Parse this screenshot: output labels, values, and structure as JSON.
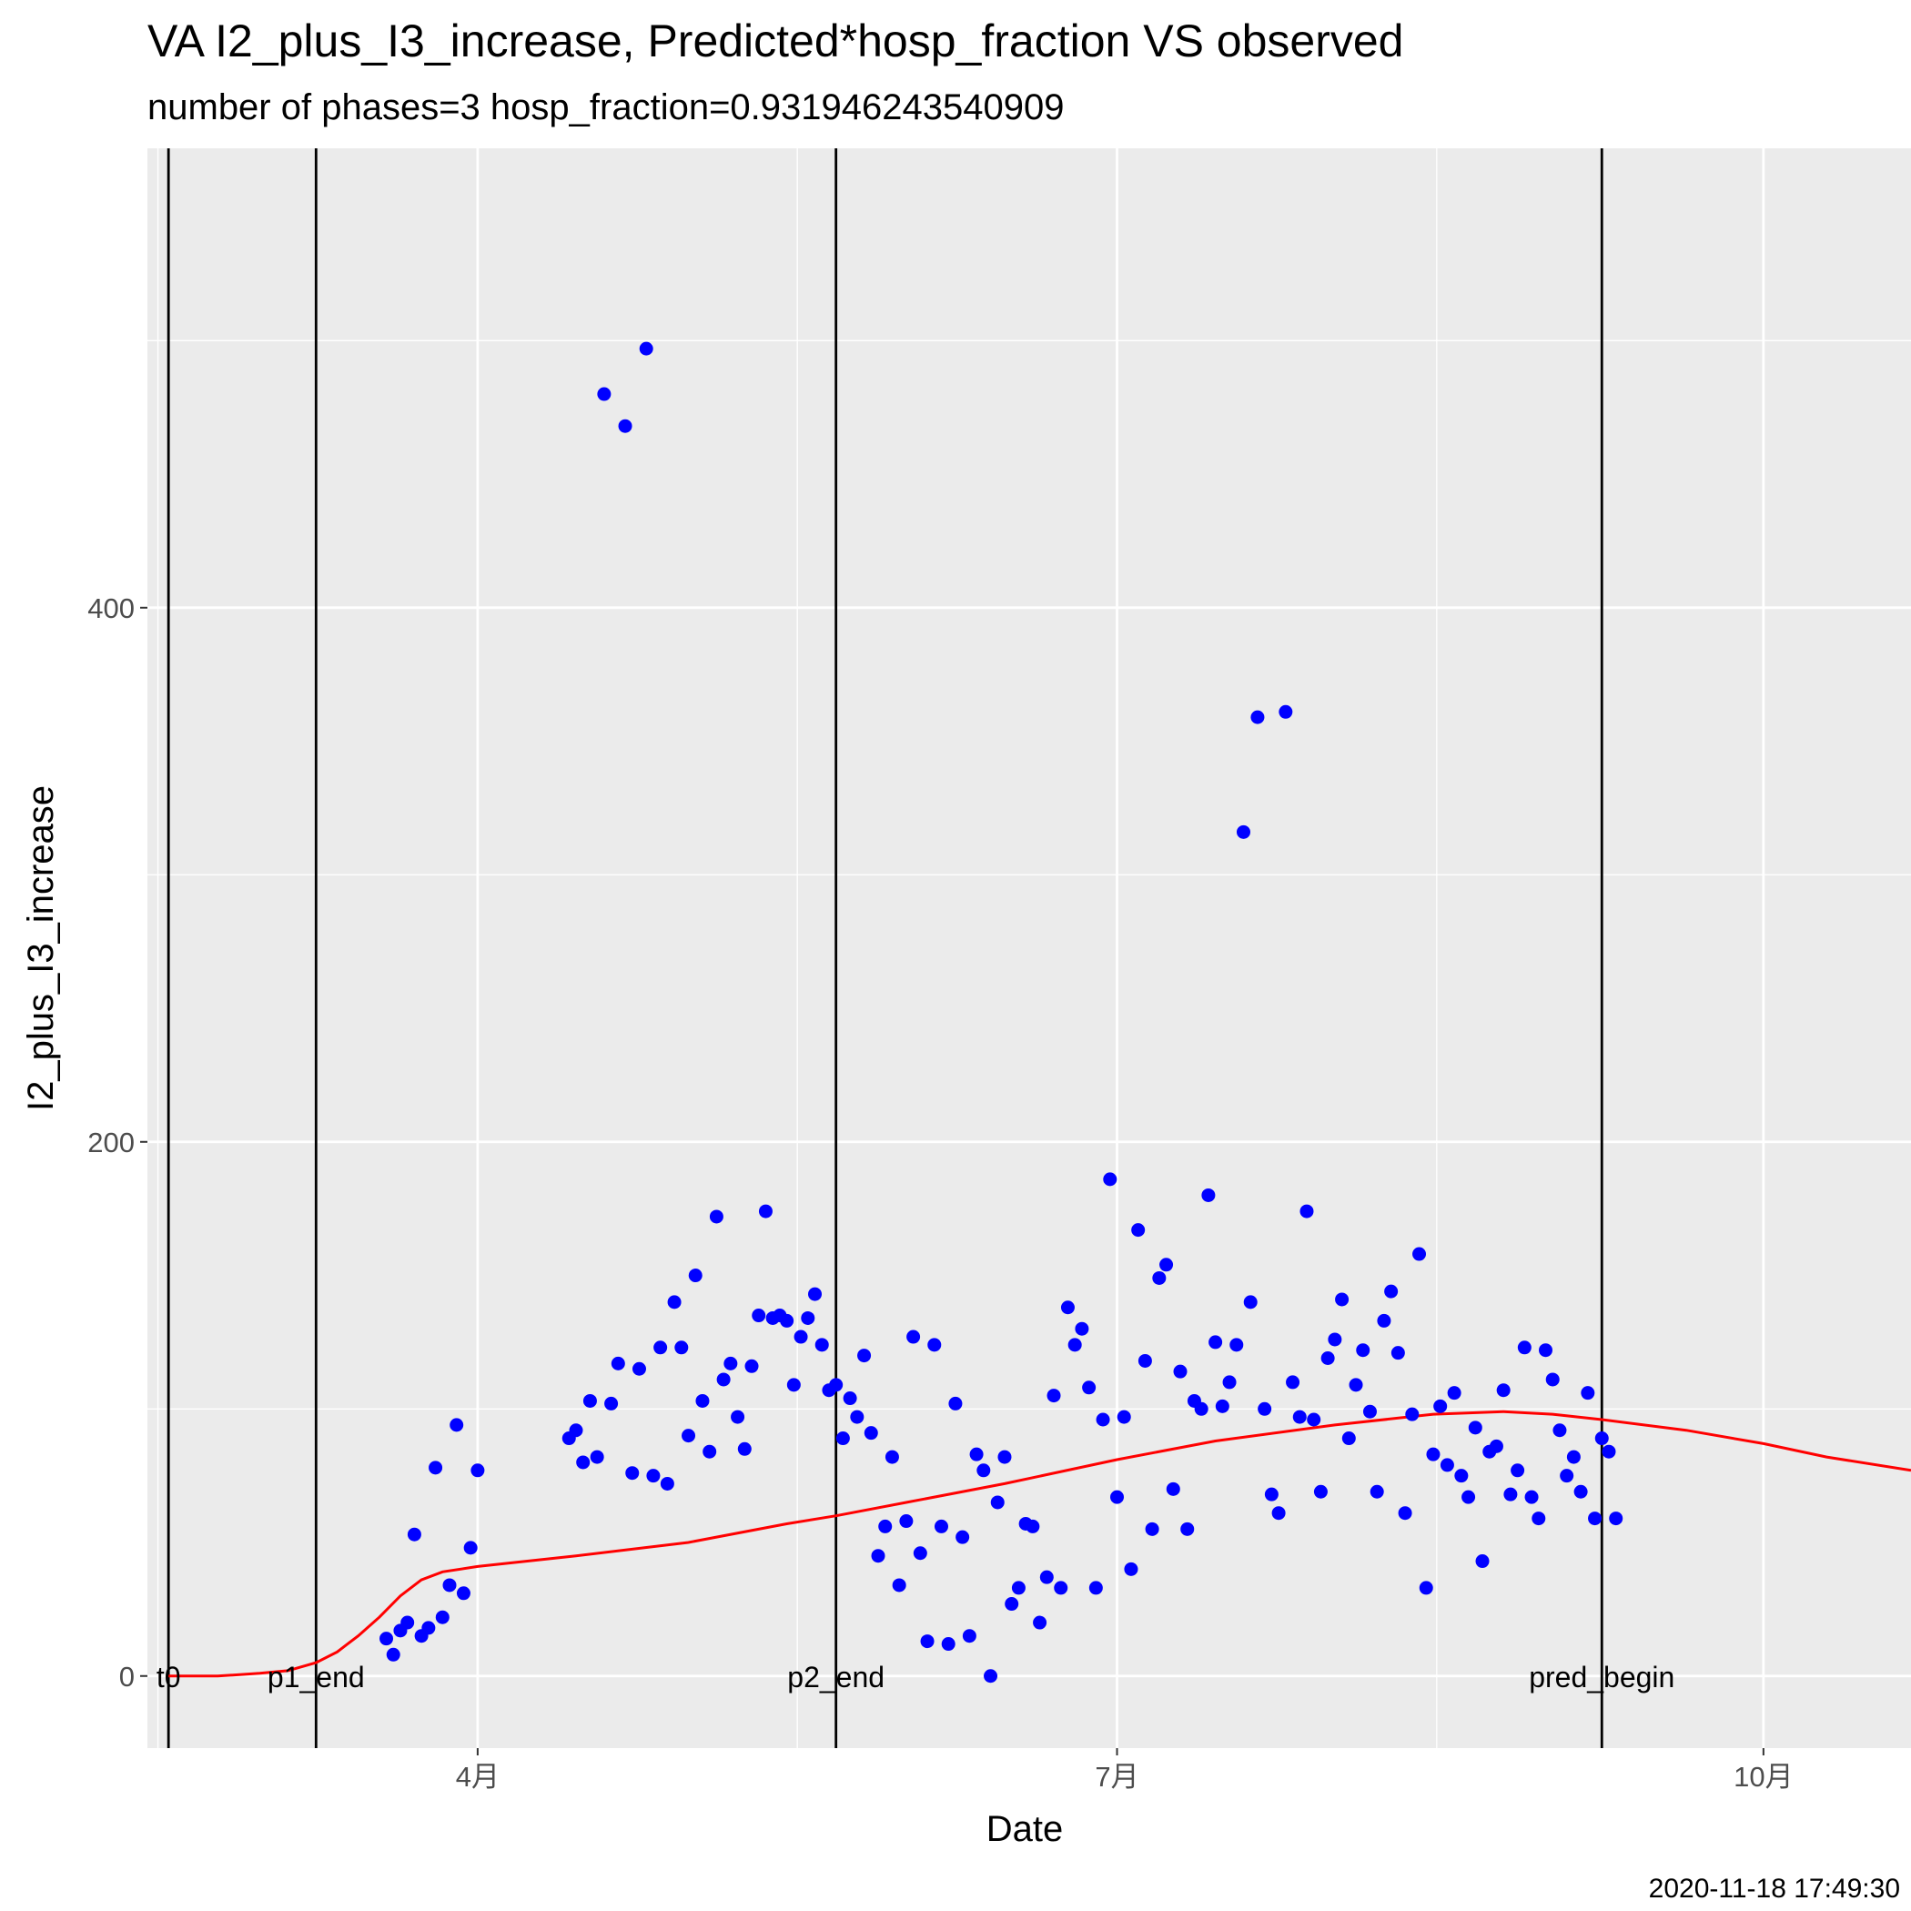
{
  "chart_data": {
    "type": "scatter",
    "title": "VA I2_plus_I3_increase, Predicted*hosp_fraction VS observed",
    "subtitle": "number of phases=3   hosp_fraction=0.931946243540909",
    "xlabel": "Date",
    "ylabel": "I2_plus_I3_increase",
    "caption": "2020-11-18 17:49:30",
    "xlim": [
      "2020-02-14",
      "2020-10-22"
    ],
    "ylim": [
      -27,
      572
    ],
    "x_ticks": [
      {
        "date": "2020-04-01",
        "label": "4月"
      },
      {
        "date": "2020-07-01",
        "label": "7月"
      },
      {
        "date": "2020-10-01",
        "label": "10月"
      }
    ],
    "y_ticks": [
      0,
      200,
      400
    ],
    "grid": true,
    "legend": "none",
    "colors": {
      "panel": "#ebebeb",
      "grid": "#ffffff",
      "observed": "#0000ff",
      "predicted": "#ff0000",
      "vline": "#000000"
    },
    "vlines": [
      {
        "date": "2020-02-17",
        "label": "t0"
      },
      {
        "date": "2020-03-09",
        "label": "p1_end"
      },
      {
        "date": "2020-05-22",
        "label": "p2_end"
      },
      {
        "date": "2020-09-08",
        "label": "pred_begin"
      }
    ],
    "observed": {
      "start_date": "2020-03-19",
      "values": [
        14,
        8,
        17,
        20,
        53,
        15,
        18,
        78,
        22,
        34,
        94,
        31,
        48,
        77,
        null,
        null,
        null,
        null,
        null,
        null,
        null,
        null,
        null,
        null,
        null,
        null,
        89,
        92,
        80,
        103,
        82,
        480,
        102,
        117,
        468,
        76,
        115,
        497,
        75,
        123,
        72,
        140,
        123,
        90,
        150,
        103,
        84,
        172,
        111,
        117,
        97,
        85,
        116,
        135,
        174,
        134,
        135,
        133,
        109,
        127,
        134,
        143,
        124,
        107,
        109,
        89,
        104,
        97,
        120,
        91,
        45,
        56,
        82,
        34,
        58,
        127,
        46,
        13,
        124,
        56,
        12,
        102,
        52,
        15,
        83,
        77,
        0,
        65,
        82,
        27,
        33,
        57,
        56,
        20,
        37,
        105,
        33,
        138,
        124,
        130,
        108,
        33,
        96,
        186,
        67,
        97,
        40,
        167,
        118,
        55,
        149,
        154,
        70,
        114,
        55,
        103,
        100,
        180,
        125,
        101,
        110,
        124,
        316,
        140,
        359,
        100,
        68,
        61,
        361,
        110,
        97,
        174,
        96,
        69,
        119,
        126,
        141,
        89,
        109,
        122,
        99,
        69,
        133,
        144,
        121,
        61,
        98,
        158,
        33,
        83,
        101,
        79,
        106,
        75,
        67,
        93,
        43,
        84,
        86,
        107,
        68,
        77,
        123,
        67,
        59,
        122,
        111,
        92,
        75,
        82,
        69,
        106,
        59,
        89,
        84,
        59
      ]
    },
    "predicted": {
      "points": [
        {
          "date": "2020-02-17",
          "value": 0
        },
        {
          "date": "2020-02-24",
          "value": 0
        },
        {
          "date": "2020-03-01",
          "value": 1
        },
        {
          "date": "2020-03-05",
          "value": 2
        },
        {
          "date": "2020-03-09",
          "value": 5
        },
        {
          "date": "2020-03-12",
          "value": 9
        },
        {
          "date": "2020-03-15",
          "value": 15
        },
        {
          "date": "2020-03-18",
          "value": 22
        },
        {
          "date": "2020-03-21",
          "value": 30
        },
        {
          "date": "2020-03-24",
          "value": 36
        },
        {
          "date": "2020-03-27",
          "value": 39
        },
        {
          "date": "2020-04-01",
          "value": 41
        },
        {
          "date": "2020-04-15",
          "value": 45
        },
        {
          "date": "2020-05-01",
          "value": 50
        },
        {
          "date": "2020-05-15",
          "value": 57
        },
        {
          "date": "2020-05-22",
          "value": 60
        },
        {
          "date": "2020-06-01",
          "value": 65
        },
        {
          "date": "2020-06-15",
          "value": 72
        },
        {
          "date": "2020-07-01",
          "value": 81
        },
        {
          "date": "2020-07-15",
          "value": 88
        },
        {
          "date": "2020-08-01",
          "value": 94
        },
        {
          "date": "2020-08-15",
          "value": 98
        },
        {
          "date": "2020-08-25",
          "value": 99
        },
        {
          "date": "2020-09-01",
          "value": 98
        },
        {
          "date": "2020-09-08",
          "value": 96
        },
        {
          "date": "2020-09-20",
          "value": 92
        },
        {
          "date": "2020-10-01",
          "value": 87
        },
        {
          "date": "2020-10-10",
          "value": 82
        },
        {
          "date": "2020-10-22",
          "value": 77
        }
      ]
    }
  }
}
